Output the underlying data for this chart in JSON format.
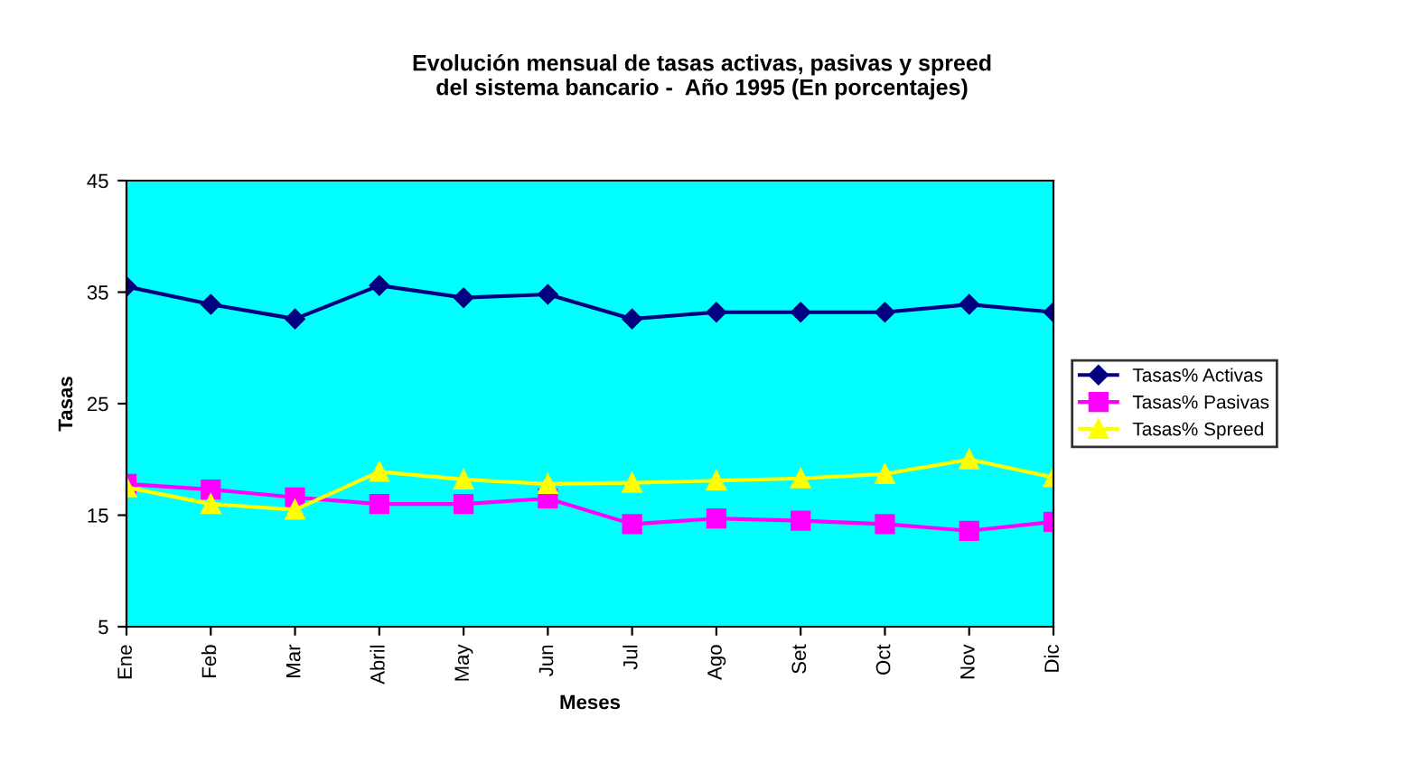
{
  "chart_data": {
    "type": "line",
    "title": "Evolución mensual de tasas activas, pasivas y spreed\ndel sistema bancario -  Año 1995 (En porcentajes)",
    "xlabel": "Meses",
    "ylabel": "Tasas",
    "categories": [
      "Ene",
      "Feb",
      "Mar",
      "Abril",
      "May",
      "Jun",
      "Jul",
      "Ago",
      "Set",
      "Oct",
      "Nov",
      "Dic"
    ],
    "series": [
      {
        "name": "Tasas% Activas",
        "color": "#000080",
        "marker": "diamond",
        "values": [
          35.5,
          33.9,
          32.6,
          35.6,
          34.5,
          34.8,
          32.6,
          33.2,
          33.2,
          33.2,
          33.9,
          33.2
        ]
      },
      {
        "name": "Tasas% Pasivas",
        "color": "#ff00ff",
        "marker": "square",
        "values": [
          17.8,
          17.3,
          16.6,
          16.0,
          16.0,
          16.5,
          14.2,
          14.7,
          14.5,
          14.2,
          13.6,
          14.4
        ]
      },
      {
        "name": "Tasas% Spreed",
        "color": "#ffff00",
        "marker": "triangle",
        "values": [
          17.5,
          16.0,
          15.5,
          18.9,
          18.2,
          17.8,
          17.9,
          18.1,
          18.3,
          18.7,
          20.0,
          18.4
        ]
      }
    ],
    "ylim": [
      5,
      45
    ],
    "yticks": [
      5,
      15,
      25,
      35,
      45
    ],
    "grid": false,
    "legend": "right"
  }
}
